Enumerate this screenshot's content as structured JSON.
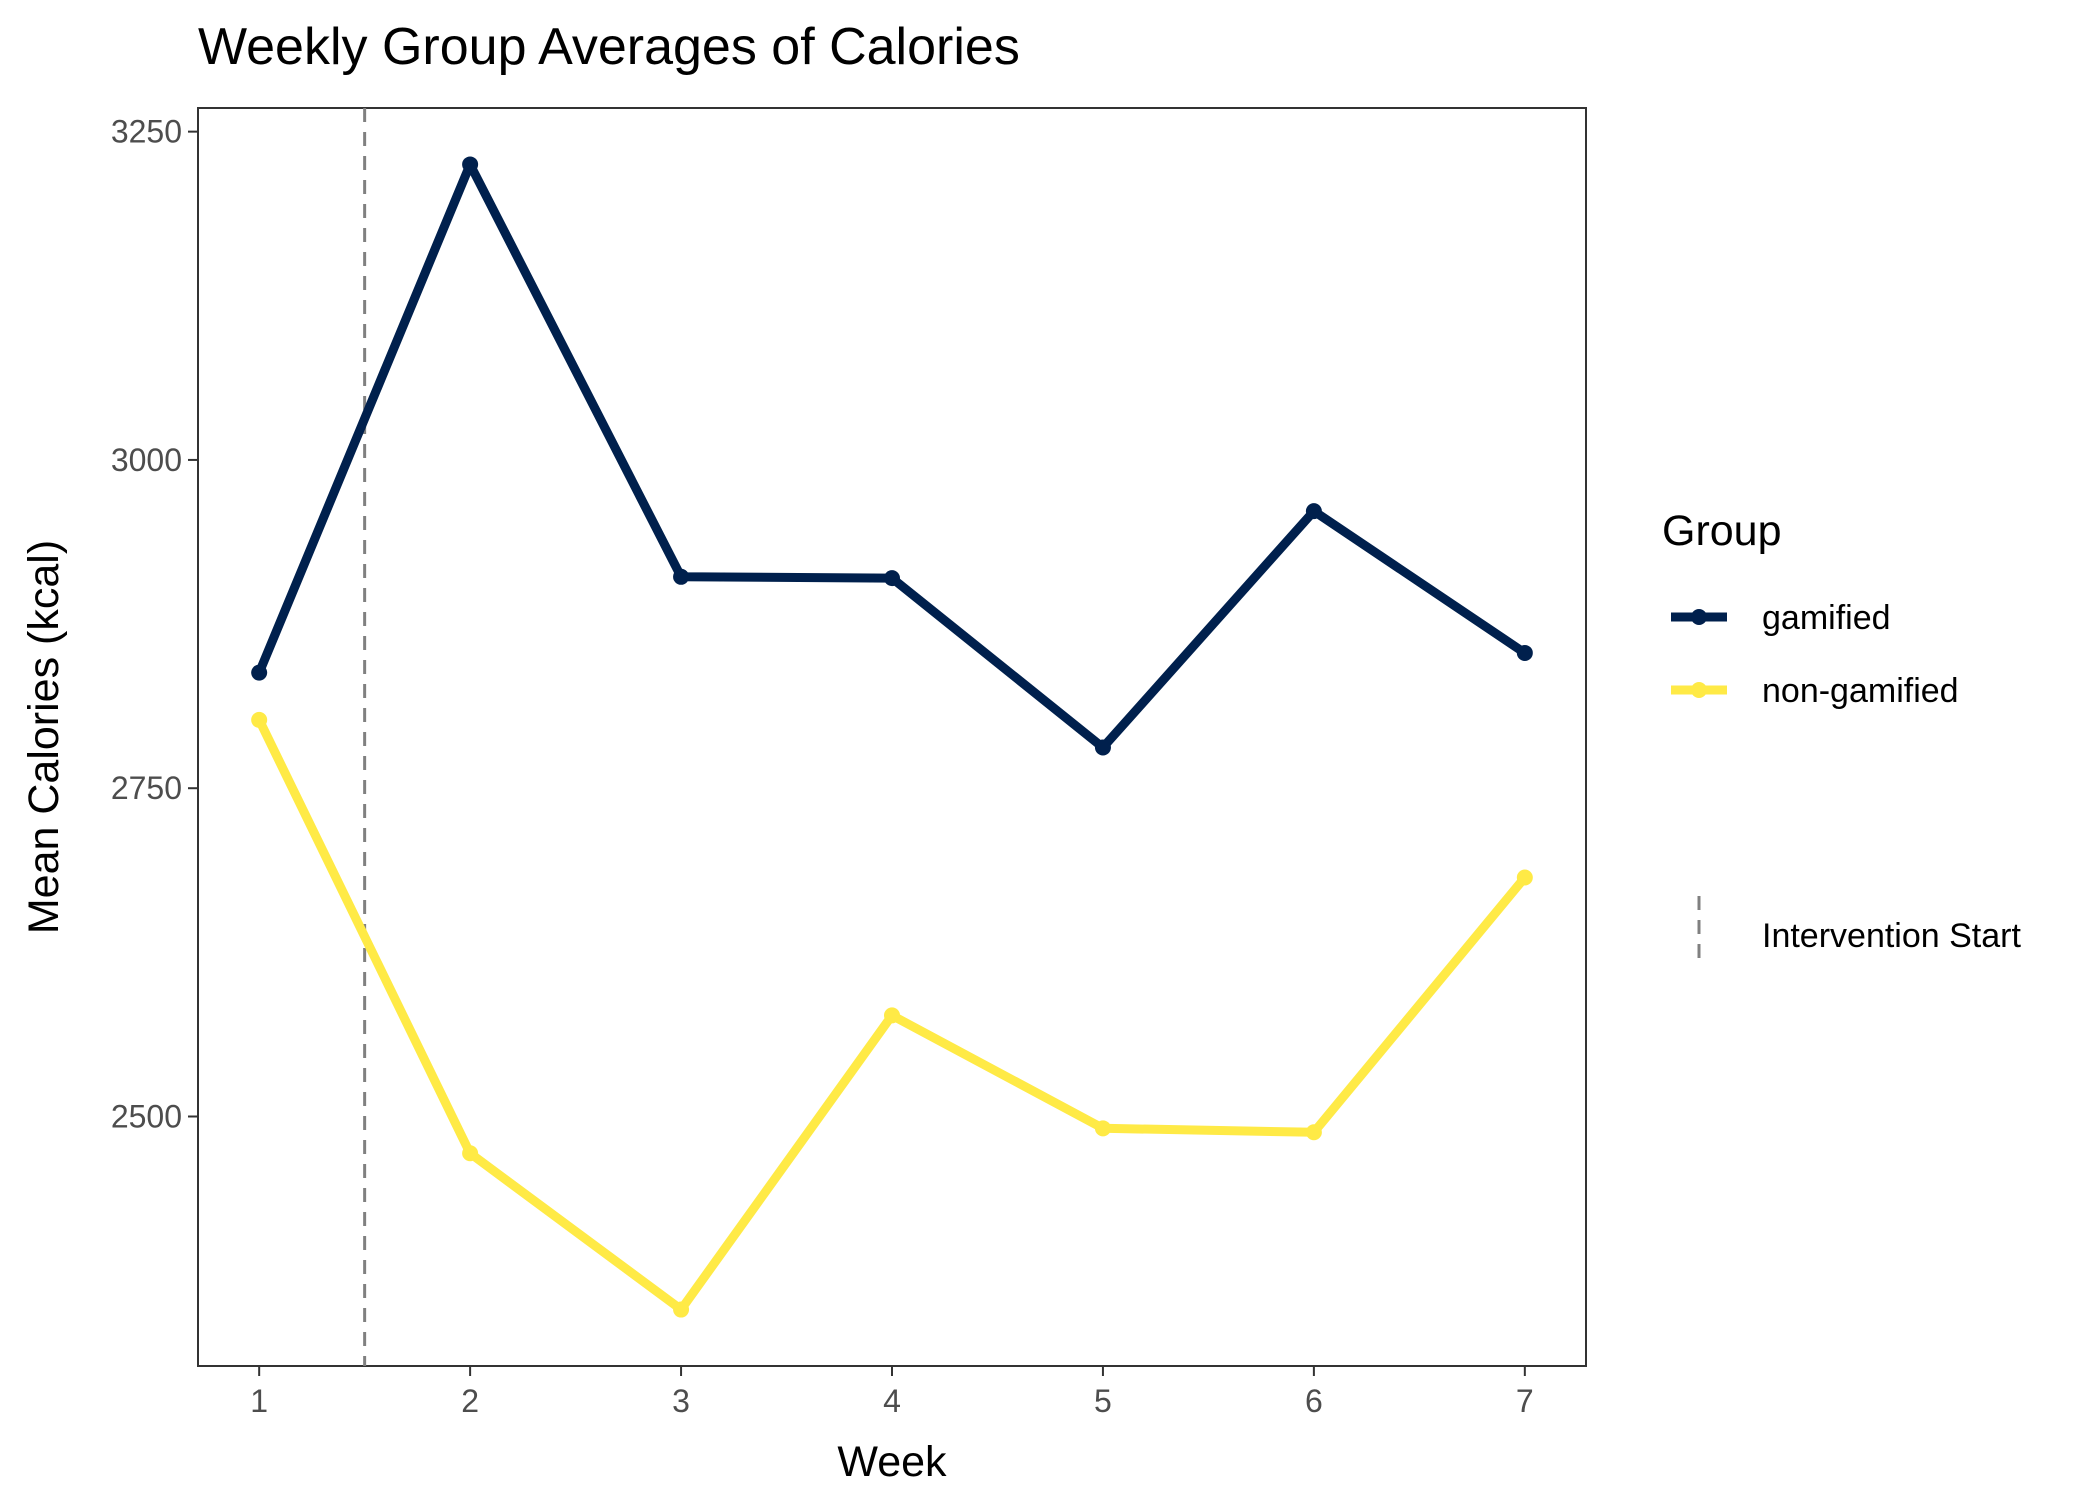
{
  "chart_data": {
    "type": "line",
    "title": "Weekly Group Averages of Calories",
    "xlabel": "Week",
    "ylabel": "Mean Calories (kcal)",
    "x": [
      1,
      2,
      3,
      4,
      5,
      6,
      7
    ],
    "x_ticks": [
      "1",
      "2",
      "3",
      "4",
      "5",
      "6",
      "7"
    ],
    "y_ticks": [
      "2500",
      "2750",
      "3000",
      "3250"
    ],
    "xlim": [
      0.71,
      7.29
    ],
    "ylim": [
      2310,
      3268
    ],
    "grid": false,
    "legend_position": "right",
    "legend_title": "Group",
    "series": [
      {
        "name": "gamified",
        "color": "#00204D",
        "values": [
          2838,
          3225,
          2911,
          2910,
          2781,
          2961,
          2853
        ]
      },
      {
        "name": "non-gamified",
        "color": "#FFEA46",
        "values": [
          2802,
          2472,
          2353,
          2577,
          2491,
          2488,
          2682
        ]
      }
    ],
    "reference_line": {
      "label": "Intervention Start",
      "x": 1.5,
      "style": "dashed",
      "color": "#808080"
    }
  }
}
